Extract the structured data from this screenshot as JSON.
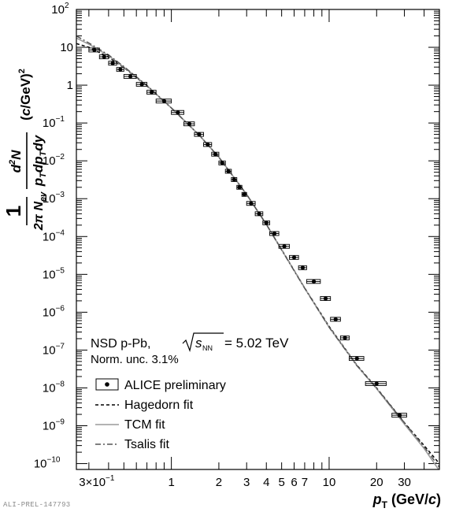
{
  "chart_data": {
    "type": "scatter",
    "title": "",
    "xlabel": "pT (GeV/c)",
    "ylabel": "(1/2π Nev) d²N/(pT dpT dy) (c/GeV)²",
    "xscale": "log",
    "yscale": "log",
    "xlim": [
      0.25,
      50
    ],
    "ylim": [
      7e-11,
      100
    ],
    "legend_position": "bottom-left",
    "annotations": {
      "system": "NSD p-Pb,",
      "energy": "= 5.02 TeV",
      "norm": "Norm. unc. 3.1%"
    },
    "series": [
      {
        "name": "ALICE preliminary",
        "style": "markers",
        "points": [
          {
            "x": 0.325,
            "y": 8.5,
            "xlo": 0.3,
            "xhi": 0.35
          },
          {
            "x": 0.375,
            "y": 5.6,
            "xlo": 0.35,
            "xhi": 0.4
          },
          {
            "x": 0.425,
            "y": 3.8,
            "xlo": 0.4,
            "xhi": 0.45
          },
          {
            "x": 0.475,
            "y": 2.6,
            "xlo": 0.45,
            "xhi": 0.5
          },
          {
            "x": 0.55,
            "y": 1.7,
            "xlo": 0.5,
            "xhi": 0.6
          },
          {
            "x": 0.65,
            "y": 1.05,
            "xlo": 0.6,
            "xhi": 0.7
          },
          {
            "x": 0.75,
            "y": 0.65,
            "xlo": 0.7,
            "xhi": 0.8
          },
          {
            "x": 0.9,
            "y": 0.38,
            "xlo": 0.8,
            "xhi": 1.0
          },
          {
            "x": 1.1,
            "y": 0.19,
            "xlo": 1.0,
            "xhi": 1.2
          },
          {
            "x": 1.3,
            "y": 0.095,
            "xlo": 1.2,
            "xhi": 1.4
          },
          {
            "x": 1.5,
            "y": 0.05,
            "xlo": 1.4,
            "xhi": 1.6
          },
          {
            "x": 1.7,
            "y": 0.027,
            "xlo": 1.6,
            "xhi": 1.8
          },
          {
            "x": 1.9,
            "y": 0.015,
            "xlo": 1.8,
            "xhi": 2.0
          },
          {
            "x": 2.1,
            "y": 0.0088,
            "xlo": 2.0,
            "xhi": 2.2
          },
          {
            "x": 2.3,
            "y": 0.0053,
            "xlo": 2.2,
            "xhi": 2.4
          },
          {
            "x": 2.5,
            "y": 0.0032,
            "xlo": 2.4,
            "xhi": 2.6
          },
          {
            "x": 2.7,
            "y": 0.002,
            "xlo": 2.6,
            "xhi": 2.8
          },
          {
            "x": 2.9,
            "y": 0.0013,
            "xlo": 2.8,
            "xhi": 3.0
          },
          {
            "x": 3.2,
            "y": 0.00075,
            "xlo": 3.0,
            "xhi": 3.4
          },
          {
            "x": 3.6,
            "y": 0.0004,
            "xlo": 3.4,
            "xhi": 3.8
          },
          {
            "x": 4.0,
            "y": 0.00023,
            "xlo": 3.8,
            "xhi": 4.2
          },
          {
            "x": 4.5,
            "y": 0.00012,
            "xlo": 4.2,
            "xhi": 4.8
          },
          {
            "x": 5.2,
            "y": 5.5e-05,
            "xlo": 4.8,
            "xhi": 5.6
          },
          {
            "x": 6.0,
            "y": 2.8e-05,
            "xlo": 5.6,
            "xhi": 6.4
          },
          {
            "x": 6.8,
            "y": 1.5e-05,
            "xlo": 6.4,
            "xhi": 7.2
          },
          {
            "x": 8.0,
            "y": 6.5e-06,
            "xlo": 7.2,
            "xhi": 8.8
          },
          {
            "x": 9.5,
            "y": 2.3e-06,
            "xlo": 8.8,
            "xhi": 10.2
          },
          {
            "x": 11.0,
            "y": 6.5e-07,
            "xlo": 10.2,
            "xhi": 11.8
          },
          {
            "x": 12.6,
            "y": 2.1e-07,
            "xlo": 11.8,
            "xhi": 13.4
          },
          {
            "x": 15.0,
            "y": 6e-08,
            "xlo": 13.4,
            "xhi": 16.6
          },
          {
            "x": 20.0,
            "y": 1.3e-08,
            "xlo": 17.0,
            "xhi": 23.0
          },
          {
            "x": 28.0,
            "y": 1.9e-09,
            "xlo": 25.0,
            "xhi": 31.0
          }
        ]
      },
      {
        "name": "Hagedorn fit",
        "style": "dashed",
        "x": [
          0.25,
          0.3,
          0.4,
          0.5,
          0.7,
          1.0,
          1.5,
          2.0,
          3.0,
          4.0,
          5.0,
          7.0,
          10.0,
          15.0,
          20.0,
          30.0,
          40.0,
          50.0
        ],
        "y": [
          12.5,
          10.0,
          5.5,
          2.9,
          0.95,
          0.25,
          0.048,
          0.0126,
          0.0013,
          0.00021,
          4.5e-05,
          4.4e-06,
          4.2e-07,
          4e-08,
          1e-08,
          1.2e-09,
          3e-10,
          1e-10
        ]
      },
      {
        "name": "TCM fit",
        "style": "solid",
        "x": [
          0.25,
          0.3,
          0.4,
          0.5,
          0.7,
          1.0,
          1.5,
          2.0,
          3.0,
          4.0,
          5.0,
          7.0,
          10.0,
          15.0,
          20.0,
          30.0,
          40.0,
          50.0
        ],
        "y": [
          17.5,
          12.0,
          6.0,
          3.0,
          0.97,
          0.25,
          0.048,
          0.0125,
          0.0013,
          0.00021,
          4.4e-05,
          4.3e-06,
          4e-07,
          3.9e-08,
          9.5e-09,
          1.1e-09,
          2.5e-10,
          6.5e-11
        ]
      },
      {
        "name": "Tsalis fit",
        "style": "dash-dot",
        "x": [
          0.25,
          0.3,
          0.4,
          0.5,
          0.7,
          1.0,
          1.5,
          2.0,
          3.0,
          4.0,
          5.0,
          7.0,
          10.0,
          15.0,
          20.0,
          30.0,
          40.0,
          50.0
        ],
        "y": [
          20.0,
          13.0,
          6.3,
          3.1,
          0.98,
          0.25,
          0.048,
          0.0125,
          0.0013,
          0.00021,
          4.4e-05,
          4.3e-06,
          4e-07,
          3.9e-08,
          9.8e-09,
          1.2e-09,
          2.8e-10,
          8e-11
        ]
      }
    ],
    "x_ticks": [
      {
        "value": 0.3,
        "label": "3×10",
        "exp": "−1"
      },
      {
        "value": 1,
        "label": "1"
      },
      {
        "value": 2,
        "label": "2"
      },
      {
        "value": 3,
        "label": "3"
      },
      {
        "value": 4,
        "label": "4"
      },
      {
        "value": 5,
        "label": "5"
      },
      {
        "value": 6,
        "label": "6"
      },
      {
        "value": 7,
        "label": "7"
      },
      {
        "value": 10,
        "label": "10"
      },
      {
        "value": 20,
        "label": "20"
      },
      {
        "value": 30,
        "label": "30"
      }
    ],
    "y_ticks": [
      {
        "value": 1e-10,
        "label": "10",
        "exp": "−10"
      },
      {
        "value": 1e-09,
        "label": "10",
        "exp": "−9"
      },
      {
        "value": 1e-08,
        "label": "10",
        "exp": "−8"
      },
      {
        "value": 1e-07,
        "label": "10",
        "exp": "−7"
      },
      {
        "value": 1e-06,
        "label": "10",
        "exp": "−6"
      },
      {
        "value": 1e-05,
        "label": "10",
        "exp": "−5"
      },
      {
        "value": 0.0001,
        "label": "10",
        "exp": "−4"
      },
      {
        "value": 0.001,
        "label": "10",
        "exp": "−3"
      },
      {
        "value": 0.01,
        "label": "10",
        "exp": "−2"
      },
      {
        "value": 0.1,
        "label": "10",
        "exp": "−1"
      },
      {
        "value": 1,
        "label": "1"
      },
      {
        "value": 10,
        "label": "10"
      },
      {
        "value": 100,
        "label": "10",
        "exp": "2"
      }
    ]
  },
  "credit": "ALI-PREL-147793"
}
